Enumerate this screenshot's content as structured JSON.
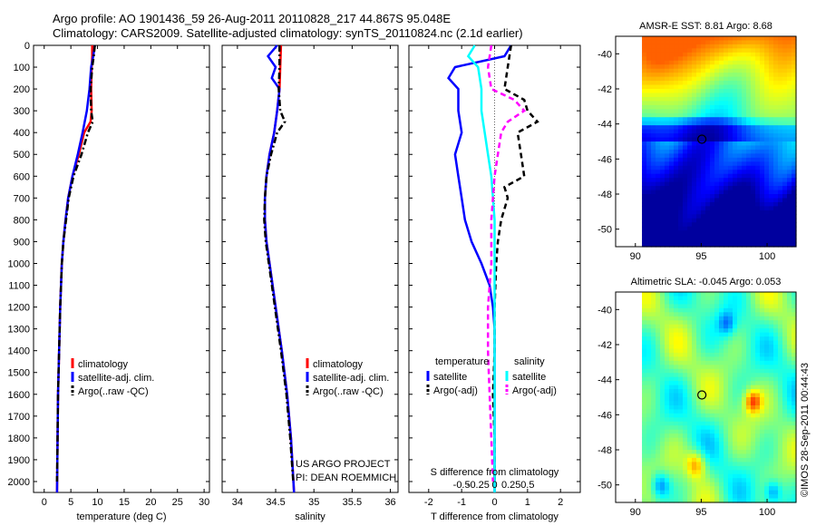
{
  "header": {
    "line1": "Argo profile: AO 1901436_59 26-Aug-2011 20110828_217 44.867S 95.048E",
    "line2": "Climatology: CARS2009. Satellite-adjusted climatology: synTS_20110824.nc (2.1d earlier)"
  },
  "credits": {
    "project_line1": "US ARGO PROJECT",
    "project_line2": "PI: DEAN ROEMMICH",
    "imos_stamp": "©IMOS 28-Sep-2011 00:44:43"
  },
  "colors": {
    "climatology": "#ff0000",
    "satellite": "#0000ff",
    "argo": "#000000",
    "satellite_salinity": "#00ffff",
    "argo_salinity": "#ff00ff"
  },
  "chart_data": [
    {
      "type": "line",
      "panel": "temperature",
      "xlabel": "temperature (deg C)",
      "ylabel": "",
      "xlim": [
        -2,
        31
      ],
      "ylim": [
        2050,
        0
      ],
      "xticks": [
        0,
        5,
        10,
        15,
        20,
        25,
        30
      ],
      "yticks": [
        0,
        100,
        200,
        300,
        400,
        500,
        600,
        700,
        800,
        900,
        1000,
        1100,
        1200,
        1300,
        1400,
        1500,
        1600,
        1700,
        1800,
        1900,
        2000
      ],
      "legend": {
        "placement": "lower-right",
        "entries": [
          "climatology",
          "satellite-adj. clim.",
          "Argo(..raw -QC)"
        ]
      },
      "series": [
        {
          "name": "climatology",
          "style": "solid",
          "color": "#ff0000",
          "depth": [
            0,
            50,
            100,
            200,
            300,
            350,
            400,
            500,
            600,
            700,
            800,
            900,
            1000,
            1200,
            1400,
            1600,
            1800,
            2050
          ],
          "values": [
            9.0,
            9.0,
            8.9,
            8.8,
            8.9,
            8.7,
            7.5,
            6.5,
            5.3,
            4.5,
            4.0,
            3.6,
            3.3,
            3.0,
            2.8,
            2.6,
            2.5,
            2.4
          ]
        },
        {
          "name": "satellite-adj. clim.",
          "style": "solid",
          "color": "#0000ff",
          "depth": [
            0,
            50,
            100,
            200,
            300,
            400,
            500,
            600,
            700,
            800,
            900,
            1000,
            1200,
            1400,
            1600,
            1800,
            2050
          ],
          "values": [
            9.5,
            9.2,
            8.8,
            8.5,
            8.0,
            7.2,
            6.3,
            5.3,
            4.5,
            4.0,
            3.6,
            3.3,
            3.0,
            2.8,
            2.6,
            2.5,
            2.4
          ]
        },
        {
          "name": "Argo(..raw -QC)",
          "style": "dashdot",
          "color": "#000000",
          "depth": [
            0,
            50,
            100,
            200,
            300,
            350,
            400,
            500,
            600,
            700,
            800,
            900,
            1000,
            1200,
            1400,
            1600,
            1800,
            2000
          ],
          "values": [
            9.5,
            9.3,
            9.0,
            8.7,
            8.8,
            9.1,
            8.2,
            7.0,
            5.5,
            4.6,
            4.1,
            3.6,
            3.3,
            3.0,
            2.8,
            2.6,
            2.5,
            2.4
          ]
        }
      ]
    },
    {
      "type": "line",
      "panel": "salinity",
      "xlabel": "salinity",
      "ylabel": "",
      "xlim": [
        33.8,
        36.1
      ],
      "ylim": [
        2050,
        0
      ],
      "xticks": [
        34,
        34.5,
        35,
        35.5,
        36
      ],
      "legend": {
        "placement": "lower-right",
        "entries": [
          "climatology",
          "satellite-adj. clim.",
          "Argo(..raw -QC)"
        ]
      },
      "series": [
        {
          "name": "climatology",
          "style": "solid",
          "color": "#ff0000",
          "depth": [
            0,
            100,
            200,
            300,
            400,
            500,
            600,
            700,
            800,
            900,
            1000,
            1200,
            1400,
            1600,
            1800,
            2050
          ],
          "values": [
            34.57,
            34.56,
            34.55,
            34.52,
            34.48,
            34.42,
            34.38,
            34.36,
            34.36,
            34.38,
            34.42,
            34.5,
            34.58,
            34.65,
            34.7,
            34.74
          ]
        },
        {
          "name": "satellite-adj. clim.",
          "style": "solid",
          "color": "#0000ff",
          "depth": [
            0,
            50,
            100,
            150,
            200,
            300,
            400,
            500,
            600,
            700,
            800,
            900,
            1000,
            1200,
            1400,
            1600,
            1800,
            2050
          ],
          "values": [
            34.52,
            34.4,
            34.5,
            34.45,
            34.55,
            34.52,
            34.48,
            34.42,
            34.38,
            34.36,
            34.36,
            34.38,
            34.42,
            34.5,
            34.58,
            34.65,
            34.7,
            34.74
          ]
        },
        {
          "name": "Argo(..raw -QC)",
          "style": "dashdot",
          "color": "#000000",
          "depth": [
            0,
            100,
            200,
            300,
            350,
            400,
            500,
            600,
            700,
            800,
            900,
            1000,
            1200,
            1400,
            1600,
            1800,
            2000
          ],
          "values": [
            34.55,
            34.55,
            34.54,
            34.56,
            34.62,
            34.52,
            34.44,
            34.38,
            34.36,
            34.35,
            34.37,
            34.41,
            34.49,
            34.57,
            34.64,
            34.69,
            34.73
          ]
        }
      ]
    },
    {
      "type": "line",
      "panel": "difference",
      "xlabel": "T difference from climatology",
      "xlabel_top": "S difference from climatology",
      "xlim": [
        -2.6,
        2.6
      ],
      "ylim": [
        2050,
        0
      ],
      "xticks": [
        -2,
        -1,
        0,
        1,
        2
      ],
      "xticklabels": [
        "-2",
        "-1",
        "0",
        "1",
        "2"
      ],
      "xticks_top": [
        -1,
        -0.5,
        0,
        0.5,
        1
      ],
      "xticklabels_top": [
        "-0.5",
        "-0.25",
        "0",
        "0.25",
        "0.5"
      ],
      "legend": {
        "placement": "lower-center",
        "groups": [
          {
            "heading": "temperature",
            "entries": [
              "satellite",
              "Argo(-adj)"
            ]
          },
          {
            "heading": "salinity",
            "entries": [
              "satellite",
              "Argo(-adj)"
            ]
          }
        ]
      },
      "series": [
        {
          "name": "satellite",
          "variable": "temperature",
          "style": "solid",
          "color": "#0000ff",
          "depth": [
            0,
            50,
            100,
            150,
            200,
            300,
            400,
            500,
            600,
            700,
            800,
            900,
            1000,
            1100,
            1200,
            1300,
            1400,
            1500,
            1600,
            1800,
            2050
          ],
          "values": [
            0.5,
            0.3,
            -1.2,
            -1.4,
            -1.1,
            -1.1,
            -1.0,
            -1.2,
            -1.1,
            -1.0,
            -0.9,
            -0.7,
            -0.4,
            -0.15,
            -0.05,
            0,
            0,
            0,
            0,
            0,
            0
          ]
        },
        {
          "name": "Argo(-adj)",
          "variable": "temperature",
          "style": "dashed",
          "color": "#000000",
          "depth": [
            0,
            100,
            200,
            250,
            300,
            350,
            400,
            500,
            600,
            650,
            700,
            800,
            900,
            1000,
            1200,
            1400,
            1600,
            1800,
            2000
          ],
          "values": [
            0.5,
            0.4,
            0.3,
            0.9,
            1.0,
            1.3,
            0.7,
            0.8,
            0.9,
            0.3,
            0.4,
            0.2,
            0.1,
            0.05,
            0,
            0,
            -0.05,
            0,
            0
          ]
        },
        {
          "name": "satellite",
          "variable": "salinity",
          "style": "solid",
          "color": "#00ffff",
          "depth": [
            0,
            50,
            100,
            200,
            300,
            400,
            500,
            600,
            700,
            800,
            1000,
            1200,
            1400,
            1600,
            1800,
            2050
          ],
          "values": [
            -0.6,
            -0.8,
            -0.5,
            -0.4,
            -0.4,
            -0.3,
            -0.2,
            -0.1,
            -0.05,
            0,
            0,
            0,
            0,
            0,
            0,
            0
          ]
        },
        {
          "name": "Argo(-adj)",
          "variable": "salinity",
          "style": "dashed",
          "color": "#ff00ff",
          "depth": [
            0,
            100,
            200,
            250,
            300,
            350,
            400,
            500,
            600,
            800,
            1000,
            1200,
            1400,
            1600,
            1800,
            2000
          ],
          "values": [
            -0.1,
            -0.2,
            -0.1,
            0.6,
            0.9,
            0.4,
            0.2,
            0.1,
            0,
            -0.1,
            -0.1,
            -0.2,
            -0.2,
            -0.15,
            -0.1,
            -0.05
          ]
        }
      ]
    },
    {
      "type": "heatmap",
      "panel": "sst-map",
      "title": "AMSR-E SST: 8.81 Argo: 8.68",
      "xlim": [
        88.5,
        102.2
      ],
      "ylim": [
        -51,
        -39
      ],
      "xticks": [
        90,
        95,
        100
      ],
      "yticks": [
        -40,
        -42,
        -44,
        -46,
        -48,
        -50
      ],
      "marker": {
        "lon": 95.05,
        "lat": -44.87
      },
      "colormap": "jet"
    },
    {
      "type": "heatmap",
      "panel": "sla-map",
      "title": "Altimetric SLA: -0.045 Argo: 0.053",
      "xlim": [
        88.5,
        102.2
      ],
      "ylim": [
        -51,
        -39
      ],
      "xticks": [
        90,
        95,
        100
      ],
      "yticks": [
        -40,
        -42,
        -44,
        -46,
        -48,
        -50
      ],
      "marker": {
        "lon": 95.05,
        "lat": -44.87
      },
      "colormap": "jet"
    }
  ]
}
